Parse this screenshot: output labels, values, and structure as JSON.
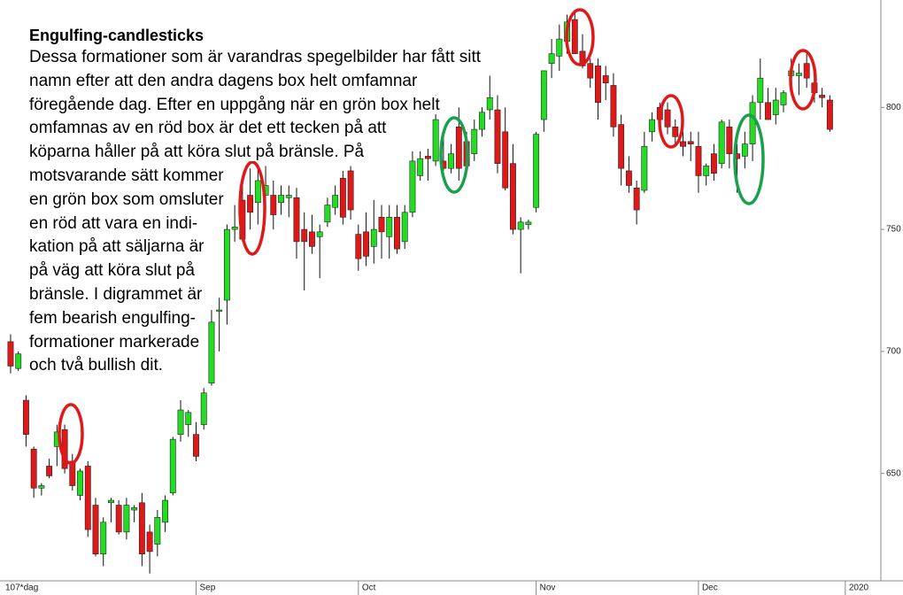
{
  "chart_data": {
    "type": "candlestick",
    "annotation": {
      "title": "Engulfing-candlesticks",
      "lines": [
        "Dessa formationer som är varandras spegelbilder har fått sitt",
        "namn efter att den andra dagens box helt omfamnar",
        "föregående dag. Efter en uppgång när en grön box helt",
        "omfamnas av en röd box är det ett tecken på att",
        "köparna håller på att köra slut på bränsle. På",
        "motsvarande sätt kommer",
        "en grön box som omsluter",
        "en röd att vara en indi-",
        "kation på att säljarna är",
        "på väg att köra slut på",
        "bränsle. I digrammet är",
        "fem bearish engulfing-",
        "formationer markerade",
        "och två bullish dit."
      ]
    },
    "period_label": "107*dag",
    "up_color": "#22dd22",
    "down_color": "#e01818",
    "ylim": [
      606,
      844
    ],
    "yticks": [
      650,
      700,
      750,
      800
    ],
    "xlim": [
      -1.37,
      112.6
    ],
    "xticks": [
      {
        "value": 24,
        "label": "Sep"
      },
      {
        "value": 45,
        "label": "Oct"
      },
      {
        "value": 68,
        "label": "Nov"
      },
      {
        "value": 89,
        "label": "Dec"
      },
      {
        "value": 108,
        "label": "2020"
      }
    ],
    "ohlc": [
      [
        704,
        707,
        691,
        694
      ],
      [
        693,
        700,
        692,
        699
      ],
      [
        680,
        682,
        661,
        666
      ],
      [
        660,
        661,
        640,
        644
      ],
      [
        644,
        646,
        641,
        645
      ],
      [
        653,
        656,
        648,
        649
      ],
      [
        661,
        670,
        653,
        667
      ],
      [
        668,
        670,
        650,
        652
      ],
      [
        655,
        658,
        643,
        645
      ],
      [
        641,
        652,
        639,
        651
      ],
      [
        653,
        655,
        624,
        627
      ],
      [
        637,
        640,
        616,
        617
      ],
      [
        617,
        632,
        612,
        630
      ],
      [
        638,
        640,
        630,
        639
      ],
      [
        637,
        639,
        625,
        626
      ],
      [
        626,
        640,
        623,
        637
      ],
      [
        635,
        637,
        630,
        636
      ],
      [
        638,
        642,
        612,
        617
      ],
      [
        626,
        629,
        609,
        618
      ],
      [
        621,
        635,
        616,
        632
      ],
      [
        630,
        641,
        626,
        639
      ],
      [
        642,
        665,
        641,
        664
      ],
      [
        666,
        680,
        663,
        676
      ],
      [
        670,
        676,
        665,
        675
      ],
      [
        666,
        671,
        655,
        657
      ],
      [
        670,
        685,
        668,
        683
      ],
      [
        687,
        717,
        686,
        712
      ],
      [
        717,
        722,
        700,
        717
      ],
      [
        721,
        752,
        711,
        750
      ],
      [
        750,
        760,
        745,
        751
      ],
      [
        762,
        770,
        745,
        746
      ],
      [
        764,
        775,
        750,
        757
      ],
      [
        761,
        776,
        752,
        770
      ],
      [
        764,
        776,
        758,
        768
      ],
      [
        764,
        770,
        750,
        756
      ],
      [
        761,
        768,
        756,
        764
      ],
      [
        763,
        768,
        755,
        764
      ],
      [
        763,
        767,
        738,
        745
      ],
      [
        750,
        757,
        725,
        745
      ],
      [
        749,
        756,
        740,
        743
      ],
      [
        747,
        752,
        730,
        749
      ],
      [
        753,
        763,
        751,
        760
      ],
      [
        759,
        768,
        756,
        764
      ],
      [
        771,
        774,
        752,
        755
      ],
      [
        774,
        776,
        754,
        758
      ],
      [
        748,
        752,
        733,
        738
      ],
      [
        749,
        757,
        735,
        739
      ],
      [
        743,
        762,
        736,
        750
      ],
      [
        755,
        760,
        738,
        749
      ],
      [
        747,
        760,
        738,
        755
      ],
      [
        755,
        760,
        740,
        742
      ],
      [
        745,
        760,
        742,
        757
      ],
      [
        757,
        782,
        755,
        778
      ],
      [
        772,
        782,
        770,
        779
      ],
      [
        780,
        783,
        770,
        779
      ],
      [
        778,
        805,
        776,
        795
      ],
      [
        778,
        788,
        774,
        775
      ],
      [
        775,
        785,
        773,
        781
      ],
      [
        792,
        800,
        770,
        775
      ],
      [
        786,
        790,
        775,
        776
      ],
      [
        781,
        795,
        778,
        791
      ],
      [
        791,
        800,
        788,
        798
      ],
      [
        799,
        813,
        795,
        804
      ],
      [
        799,
        805,
        773,
        777
      ],
      [
        790,
        800,
        766,
        767
      ],
      [
        777,
        785,
        748,
        750
      ],
      [
        750,
        755,
        732,
        753
      ],
      [
        752,
        754,
        750,
        753
      ],
      [
        759,
        790,
        757,
        789
      ],
      [
        795,
        815,
        790,
        815
      ],
      [
        818,
        828,
        812,
        822
      ],
      [
        821,
        834,
        815,
        828
      ],
      [
        827,
        838,
        822,
        835
      ],
      [
        836,
        840,
        822,
        822
      ],
      [
        823,
        830,
        816,
        817
      ],
      [
        818,
        820,
        808,
        812
      ],
      [
        817,
        820,
        795,
        802
      ],
      [
        813,
        817,
        803,
        810
      ],
      [
        809,
        814,
        788,
        792
      ],
      [
        793,
        797,
        768,
        775
      ],
      [
        774,
        780,
        765,
        768
      ],
      [
        767,
        770,
        752,
        758
      ],
      [
        766,
        790,
        765,
        784
      ],
      [
        790,
        798,
        786,
        795
      ],
      [
        800,
        802,
        790,
        795
      ],
      [
        799,
        802,
        789,
        792
      ],
      [
        792,
        795,
        785,
        788
      ],
      [
        786,
        790,
        780,
        784
      ],
      [
        786,
        790,
        778,
        785
      ],
      [
        784,
        790,
        765,
        772
      ],
      [
        772,
        777,
        768,
        776
      ],
      [
        781,
        785,
        770,
        773
      ],
      [
        777,
        795,
        775,
        794
      ],
      [
        792,
        795,
        775,
        781
      ],
      [
        781,
        785,
        765,
        779
      ],
      [
        780,
        790,
        775,
        785
      ],
      [
        785,
        805,
        778,
        802
      ],
      [
        802,
        820,
        795,
        812
      ],
      [
        802,
        808,
        795,
        795
      ],
      [
        797,
        808,
        793,
        803
      ],
      [
        801,
        807,
        798,
        806
      ],
      [
        813,
        820,
        808,
        815
      ],
      [
        813,
        818,
        805,
        814
      ],
      [
        818,
        822,
        808,
        812
      ],
      [
        810,
        814,
        802,
        806
      ],
      [
        805,
        808,
        800,
        804
      ],
      [
        803,
        805,
        790,
        791
      ]
    ]
  }
}
